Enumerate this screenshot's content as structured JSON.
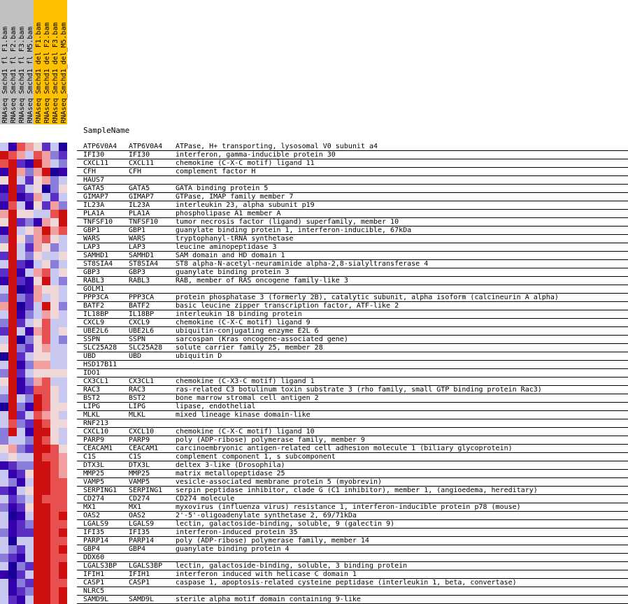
{
  "header": {
    "sample_name_label": "SampleName",
    "columns": [
      {
        "label": "RNAseq_Smchd1_fl_F1.bam",
        "color": "#c0c0c0"
      },
      {
        "label": "RNAseq_Smchd1_fl_F2.bam",
        "color": "#c0c0c0"
      },
      {
        "label": "RNAseq_Smchd1_fl_F3.bam",
        "color": "#c0c0c0"
      },
      {
        "label": "RNAseq_Smchd1_fl_M5.bam",
        "color": "#c0c0c0"
      },
      {
        "label": "RNAseq_Smchd1_del_F1.bam",
        "color": "#ffc000"
      },
      {
        "label": "RNAseq_Smchd1_del_F2.bam",
        "color": "#ffc000"
      },
      {
        "label": "RNAseq_Smchd1_del_F3.bam",
        "color": "#ffc000"
      },
      {
        "label": "RNAseq_Smchd1_del_M5.bam",
        "color": "#ffc000"
      }
    ]
  },
  "palette": [
    "#1a0099",
    "#3300aa",
    "#5b2fc4",
    "#8a7dd9",
    "#c8c8f0",
    "#f0d8d8",
    "#f0a0a0",
    "#e65050",
    "#cc1010"
  ],
  "rows": [
    {
      "n": "ATP6V0A4",
      "s": "ATP6V0A4",
      "d": "ATPase, H+ transporting, lysosomal V0 subunit a4",
      "v": [
        4,
        1,
        7,
        6,
        5,
        2,
        4,
        0
      ]
    },
    {
      "n": "IFI30",
      "s": "IFI30",
      "d": "interferon, gamma-inducible protein 30",
      "v": [
        8,
        7,
        6,
        4,
        7,
        6,
        3,
        2
      ]
    },
    {
      "n": "CXCL11",
      "s": "CXCL11",
      "d": "chemokine (C-X-C motif) ligand 11",
      "v": [
        7,
        8,
        2,
        1,
        8,
        6,
        4,
        3
      ]
    },
    {
      "n": "CFH",
      "s": "CFH",
      "d": "complement factor H",
      "v": [
        1,
        8,
        6,
        3,
        6,
        8,
        0,
        1
      ]
    },
    {
      "n": "HAUS7",
      "s": "",
      "d": "",
      "v": [
        5,
        8,
        4,
        2,
        5,
        6,
        3,
        4
      ]
    },
    {
      "n": "GATA5",
      "s": "GATA5",
      "d": "GATA binding protein 5",
      "v": [
        1,
        8,
        2,
        4,
        5,
        0,
        3,
        5
      ]
    },
    {
      "n": "GIMAP7",
      "s": "GIMAP7",
      "d": "GTPase, IMAP family member 7",
      "v": [
        2,
        8,
        1,
        2,
        6,
        4,
        2,
        4
      ]
    },
    {
      "n": "IL23A",
      "s": "IL23A",
      "d": "interleukin 23, alpha subunit p19",
      "v": [
        1,
        7,
        4,
        1,
        5,
        2,
        6,
        3
      ]
    },
    {
      "n": "PLA1A",
      "s": "PLA1A",
      "d": "phospholipase A1 member A",
      "v": [
        6,
        8,
        5,
        5,
        4,
        4,
        7,
        8
      ]
    },
    {
      "n": "TNFSF10",
      "s": "TNFSF10",
      "d": "tumor necrosis factor (ligand) superfamily, member 10",
      "v": [
        5,
        8,
        2,
        3,
        1,
        6,
        5,
        8
      ]
    },
    {
      "n": "GBP1",
      "s": "GBP1",
      "d": "guanylate binding protein 1, interferon-inducible, 67kDa",
      "v": [
        1,
        8,
        4,
        5,
        6,
        8,
        6,
        7
      ]
    },
    {
      "n": "WARS",
      "s": "WARS",
      "d": "tryptophanyl-tRNA synthetase",
      "v": [
        3,
        8,
        5,
        3,
        6,
        7,
        5,
        4
      ]
    },
    {
      "n": "LAP3",
      "s": "LAP3",
      "d": "leucine aminopeptidase 3",
      "v": [
        5,
        8,
        4,
        2,
        6,
        5,
        3,
        4
      ]
    },
    {
      "n": "SAMHD1",
      "s": "SAMHD1",
      "d": "SAM domain and HD domain 1",
      "v": [
        2,
        8,
        4,
        3,
        5,
        4,
        4,
        5
      ]
    },
    {
      "n": "ST8SIA4",
      "s": "ST8SIA4",
      "d": "ST8 alpha-N-acetyl-neuraminide alpha-2,8-sialyltransferase 4",
      "v": [
        4,
        8,
        2,
        1,
        4,
        5,
        3,
        4
      ]
    },
    {
      "n": "GBP3",
      "s": "GBP3",
      "d": "guanylate binding protein 3",
      "v": [
        2,
        8,
        1,
        4,
        6,
        7,
        4,
        5
      ]
    },
    {
      "n": "RABL3",
      "s": "RABL3",
      "d": "RAB, member of RAS oncogene family-like 3",
      "v": [
        1,
        8,
        2,
        1,
        5,
        8,
        4,
        3
      ]
    },
    {
      "n": "GOLM1",
      "s": "",
      "d": "",
      "v": [
        4,
        8,
        0,
        1,
        6,
        5,
        5,
        4
      ]
    },
    {
      "n": "PPP3CA",
      "s": "PPP3CA",
      "d": "protein phosphatase 3 (formerly 2B), catalytic subunit, alpha isoform (calcineurin A alpha)",
      "v": [
        3,
        8,
        3,
        2,
        6,
        4,
        5,
        4
      ]
    },
    {
      "n": "BATF2",
      "s": "BATF2",
      "d": "basic leucine zipper transcription factor, ATF-like 2",
      "v": [
        6,
        8,
        0,
        2,
        4,
        8,
        5,
        3
      ]
    },
    {
      "n": "IL18BP",
      "s": "IL18BP",
      "d": "interleukin 18 binding protein",
      "v": [
        4,
        8,
        1,
        3,
        4,
        6,
        5,
        4
      ]
    },
    {
      "n": "CXCL9",
      "s": "CXCL9",
      "d": "chemokine (C-X-C motif) ligand 9",
      "v": [
        3,
        8,
        2,
        4,
        5,
        7,
        4,
        4
      ]
    },
    {
      "n": "UBE2L6",
      "s": "UBE2L6",
      "d": "ubiquitin-conjugating enzyme E2L 6",
      "v": [
        2,
        8,
        4,
        1,
        6,
        7,
        4,
        5
      ]
    },
    {
      "n": "SSPN",
      "s": "SSPN",
      "d": "sarcospan (Kras oncogene-associated gene)",
      "v": [
        4,
        8,
        0,
        3,
        5,
        7,
        4,
        3
      ]
    },
    {
      "n": "SLC25A28",
      "s": "SLC25A28",
      "d": "solute carrier family 25, member 28",
      "v": [
        5,
        8,
        3,
        2,
        5,
        6,
        4,
        4
      ]
    },
    {
      "n": "UBD",
      "s": "UBD",
      "d": "ubiquitin D",
      "v": [
        0,
        8,
        2,
        4,
        5,
        5,
        4,
        4
      ]
    },
    {
      "n": "HSD17B11",
      "s": "",
      "d": "",
      "v": [
        4,
        8,
        1,
        3,
        6,
        6,
        4,
        4
      ]
    },
    {
      "n": "IDO1",
      "s": "",
      "d": "",
      "v": [
        3,
        8,
        2,
        4,
        5,
        5,
        5,
        5
      ]
    },
    {
      "n": "CX3CL1",
      "s": "CX3CL1",
      "d": "chemokine (C-X3-C motif) ligand 1",
      "v": [
        5,
        8,
        1,
        3,
        6,
        7,
        4,
        4
      ]
    },
    {
      "n": "RAC3",
      "s": "RAC3",
      "d": "ras-related C3 botulinum toxin substrate 3 (rho family, small GTP binding protein Rac3)",
      "v": [
        4,
        8,
        1,
        2,
        7,
        7,
        5,
        4
      ]
    },
    {
      "n": "BST2",
      "s": "BST2",
      "d": "bone marrow stromal cell antigen 2",
      "v": [
        3,
        8,
        4,
        3,
        8,
        7,
        5,
        4
      ]
    },
    {
      "n": "LIPG",
      "s": "LIPG",
      "d": "lipase, endothelial",
      "v": [
        0,
        8,
        3,
        1,
        8,
        7,
        5,
        5
      ]
    },
    {
      "n": "MLKL",
      "s": "MLKL",
      "d": "mixed lineage kinase domain-like",
      "v": [
        4,
        8,
        2,
        4,
        7,
        6,
        5,
        4
      ]
    },
    {
      "n": "RNF213",
      "s": "",
      "d": "",
      "v": [
        4,
        7,
        3,
        2,
        8,
        7,
        5,
        5
      ]
    },
    {
      "n": "CXCL10",
      "s": "CXCL10",
      "d": "chemokine (C-X-C motif) ligand 10",
      "v": [
        3,
        8,
        4,
        1,
        8,
        8,
        5,
        4
      ]
    },
    {
      "n": "PARP9",
      "s": "PARP9",
      "d": "poly (ADP-ribose) polymerase family, member 9",
      "v": [
        3,
        4,
        4,
        3,
        8,
        7,
        5,
        4
      ]
    },
    {
      "n": "CEACAM1",
      "s": "CEACAM1",
      "d": "carcinoembryonic antigen-related cell adhesion molecule 1 (biliary glycoprotein)",
      "v": [
        5,
        6,
        3,
        2,
        8,
        8,
        7,
        5
      ]
    },
    {
      "n": "C1S",
      "s": "C1S",
      "d": "complement component 1, s subcomponent",
      "v": [
        4,
        5,
        4,
        4,
        8,
        7,
        7,
        6
      ]
    },
    {
      "n": "DTX3L",
      "s": "DTX3L",
      "d": "deltex 3-like (Drosophila)",
      "v": [
        1,
        2,
        3,
        3,
        8,
        8,
        7,
        6
      ]
    },
    {
      "n": "MMP25",
      "s": "MMP25",
      "d": "matrix metallopeptidase 25",
      "v": [
        4,
        1,
        2,
        5,
        8,
        8,
        7,
        6
      ]
    },
    {
      "n": "VAMP5",
      "s": "VAMP5",
      "d": "vesicle-associated membrane protein 5 (myobrevin)",
      "v": [
        4,
        3,
        1,
        4,
        8,
        8,
        7,
        7
      ]
    },
    {
      "n": "SERPING1",
      "s": "SERPING1",
      "d": "serpin peptidase inhibitor, clade G (C1 inhibitor), member 1, (angioedema, hereditary)",
      "v": [
        2,
        1,
        4,
        5,
        8,
        8,
        7,
        7
      ]
    },
    {
      "n": "CD274",
      "s": "CD274",
      "d": "CD274 molecule",
      "v": [
        4,
        2,
        3,
        4,
        8,
        7,
        7,
        7
      ]
    },
    {
      "n": "MX1",
      "s": "MX1",
      "d": "myxovirus (influenza virus) resistance 1, interferon-inducible protein p78 (mouse)",
      "v": [
        3,
        1,
        2,
        5,
        8,
        8,
        7,
        7
      ]
    },
    {
      "n": "OAS2",
      "s": "OAS2",
      "d": "2'-5'-oligoadenylate synthetase 2, 69/71kDa",
      "v": [
        4,
        0,
        1,
        4,
        8,
        8,
        7,
        8
      ]
    },
    {
      "n": "LGALS9",
      "s": "LGALS9",
      "d": "lectin, galactoside-binding, soluble, 9 (galectin 9)",
      "v": [
        4,
        1,
        2,
        3,
        8,
        8,
        7,
        7
      ]
    },
    {
      "n": "IFI35",
      "s": "IFI35",
      "d": "interferon-induced protein 35",
      "v": [
        3,
        1,
        2,
        2,
        8,
        8,
        7,
        8
      ]
    },
    {
      "n": "PARP14",
      "s": "PARP14",
      "d": "poly (ADP-ribose) polymerase family, member 14",
      "v": [
        4,
        0,
        4,
        4,
        8,
        8,
        7,
        7
      ]
    },
    {
      "n": "GBP4",
      "s": "GBP4",
      "d": "guanylate binding protein 4",
      "v": [
        4,
        3,
        2,
        4,
        8,
        8,
        7,
        8
      ]
    },
    {
      "n": "DDX60",
      "s": "",
      "d": "",
      "v": [
        3,
        2,
        1,
        4,
        8,
        8,
        7,
        7
      ]
    },
    {
      "n": "LGALS3BP",
      "s": "LGALS3BP",
      "d": "lectin, galactoside-binding, soluble, 3 binding protein",
      "v": [
        4,
        0,
        3,
        2,
        8,
        8,
        7,
        8
      ]
    },
    {
      "n": "IFIH1",
      "s": "IFIH1",
      "d": "interferon induced with helicase C domain 1",
      "v": [
        1,
        0,
        2,
        4,
        8,
        8,
        7,
        8
      ]
    },
    {
      "n": "CASP1",
      "s": "CASP1",
      "d": "caspase 1, apoptosis-related cysteine peptidase (interleukin 1, beta, convertase)",
      "v": [
        4,
        1,
        3,
        2,
        8,
        8,
        7,
        7
      ]
    },
    {
      "n": "NLRC5",
      "s": "",
      "d": "",
      "v": [
        4,
        1,
        2,
        3,
        8,
        8,
        7,
        8
      ]
    },
    {
      "n": "SAMD9L",
      "s": "SAMD9L",
      "d": "sterile alpha motif domain containing 9-like",
      "v": [
        4,
        2,
        1,
        4,
        8,
        8,
        7,
        8
      ]
    }
  ]
}
